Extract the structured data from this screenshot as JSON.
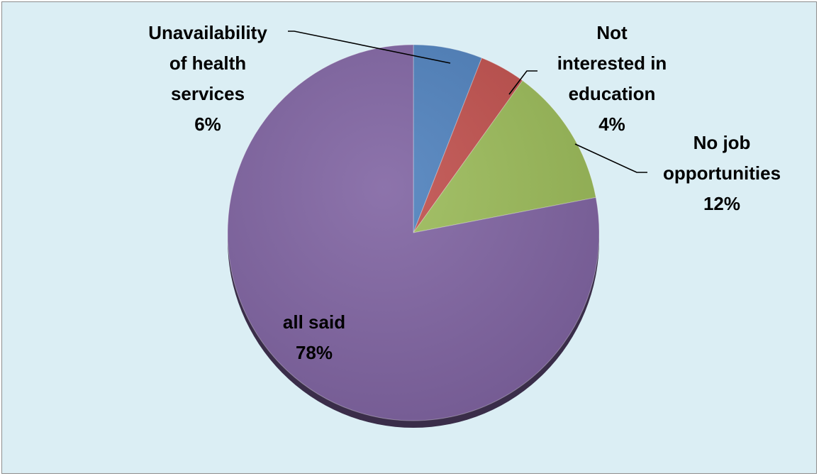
{
  "colors": {
    "background": "#dbeef4",
    "border": "#8c8c8c"
  },
  "chart_data": {
    "type": "pie",
    "title": "",
    "legend": "none",
    "slices": [
      {
        "label_lines": [
          "Unavailability",
          "of health",
          "services"
        ],
        "percent_text": "6%",
        "value": 6,
        "color": "#4f81bd"
      },
      {
        "label_lines": [
          "Not",
          "interested in",
          "education"
        ],
        "percent_text": "4%",
        "value": 4,
        "color": "#c0504d"
      },
      {
        "label_lines": [
          "No job",
          "opportunities"
        ],
        "percent_text": "12%",
        "value": 12,
        "color": "#9bbb59"
      },
      {
        "label_lines": [
          "all said"
        ],
        "percent_text": "78%",
        "value": 78,
        "color": "#8064a2"
      }
    ]
  }
}
